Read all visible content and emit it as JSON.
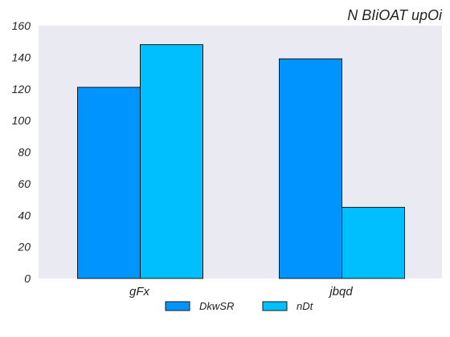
{
  "chart_data": {
    "type": "bar",
    "title": "N BIiOAT upOi",
    "xlabel": "",
    "ylabel": "",
    "categories": [
      "gFx",
      "jbqd"
    ],
    "series": [
      {
        "name": "DkwSR",
        "values": [
          121,
          139
        ],
        "color": "#0094ff"
      },
      {
        "name": "nDt",
        "values": [
          148,
          45
        ],
        "color": "#00bfff"
      }
    ],
    "ylim": [
      0,
      160
    ],
    "yticks": [
      0,
      20,
      40,
      60,
      80,
      100,
      120,
      140,
      160
    ],
    "grid": false,
    "legend": "bottom-center",
    "background": "#eaeaf2"
  }
}
